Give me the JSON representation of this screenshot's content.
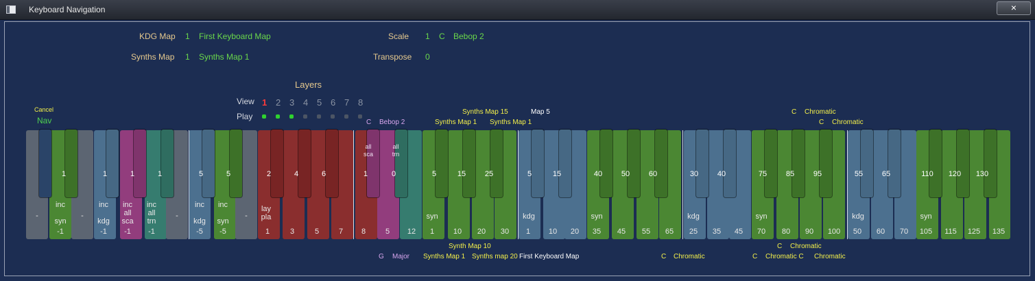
{
  "window": {
    "title": "Keyboard Navigation",
    "close": "×"
  },
  "header": {
    "kdg_label": "KDG Map",
    "kdg_num": "1",
    "kdg_name": "First Keyboard Map",
    "synths_label": "Synths Map",
    "synths_num": "1",
    "synths_name": "Synths Map 1",
    "scale_label": "Scale",
    "scale_num": "1",
    "scale_root": "C",
    "scale_name": "Bebop  2",
    "transpose_label": "Transpose",
    "transpose_val": "0"
  },
  "layers": {
    "title": "Layers",
    "view_label": "View",
    "play_label": "Play",
    "numbers": [
      "1",
      "2",
      "3",
      "4",
      "5",
      "6",
      "7",
      "8"
    ],
    "active_view": 1,
    "play_on": [
      1,
      2,
      3
    ]
  },
  "nav": {
    "cancel": "Cancel",
    "nav": "Nav"
  },
  "top_annotations": {
    "c": "C",
    "bebop": "Bebop  2",
    "synths15": "Synths Map 15",
    "synths1a": "Synths Map 1",
    "synths1b": "Synths Map 1",
    "map5": "Map 5",
    "c1": "C",
    "chrom1": "Chromatic",
    "c2": "C",
    "chrom2": "Chromatic"
  },
  "bottom_annotations": {
    "synths10": "Synth Map 10",
    "g": "G",
    "major": "Major",
    "synths1": "Synths Map 1",
    "synths20": "Synths map 20",
    "fkm": "First Keyboard Map",
    "c3": "C",
    "chrom3": "Chromatic",
    "c4": "C",
    "chrom4": "Chromatic",
    "c5": "C",
    "chrom5": "Chromatic C",
    "chrom6": "Chromatic"
  },
  "keys": {
    "g_dash1": "-",
    "b1": "1",
    "inc1": "inc",
    "syn1": "syn",
    "m1a": "-1",
    "dash2": "-",
    "b2": "1",
    "inc2": "inc",
    "kdg2": "kdg",
    "m1b": "-1",
    "b3": "1",
    "inc3": "inc",
    "all3": "all",
    "sca3": "sca",
    "m1c": "-1",
    "b4": "1",
    "inc4": "inc",
    "all4": "all",
    "trn4": "trn",
    "m1d": "-1",
    "dash3": "-",
    "b5": "5",
    "inc5": "inc",
    "kdg5": "kdg",
    "m5a": "-5",
    "b6": "5",
    "inc6": "inc",
    "syn6": "syn",
    "m5b": "-5",
    "dash4": "-",
    "r2": "2",
    "r4": "4",
    "r6": "6",
    "lay": "lay",
    "pla": "pla",
    "r1": "1",
    "r3": "3",
    "r5": "5",
    "r7": "7",
    "r8": "8",
    "pall": "all",
    "psca": "sca",
    "p1": "1",
    "p5": "5",
    "tall": "all",
    "ttrn": "trn",
    "t0": "0",
    "t12": "12",
    "g5": "5",
    "g15": "15",
    "g25": "25",
    "gsyn": "syn",
    "g1": "1",
    "g10": "10",
    "g20": "20",
    "g30": "30",
    "bl5": "5",
    "bl15": "15",
    "blkdg": "kdg",
    "bl1": "1",
    "bl10": "10",
    "bl20": "20",
    "g40": "40",
    "g50": "50",
    "g60": "60",
    "gsyn2": "syn",
    "g35": "35",
    "g45": "45",
    "g55": "55",
    "g65": "65",
    "bl30": "30",
    "bl40": "40",
    "blkdg2": "kdg",
    "bl25": "25",
    "bl35": "35",
    "bl45": "45",
    "g75": "75",
    "g85": "85",
    "g95": "95",
    "gsyn3": "syn",
    "g70": "70",
    "g80": "80",
    "g90": "90",
    "g100": "100",
    "bl55": "55",
    "bl65": "65",
    "blkdg3": "kdg",
    "bl50": "50",
    "bl60": "60",
    "bl70": "70",
    "g110": "110",
    "g120": "120",
    "g130": "130",
    "gsyn4": "syn",
    "g105": "105",
    "g115": "115",
    "g125": "125",
    "g135": "135"
  },
  "colors": {
    "label": "#e6c98e",
    "value": "#6ad84a",
    "annotation": "#f4f04a",
    "scale": "#d8a6ee"
  }
}
